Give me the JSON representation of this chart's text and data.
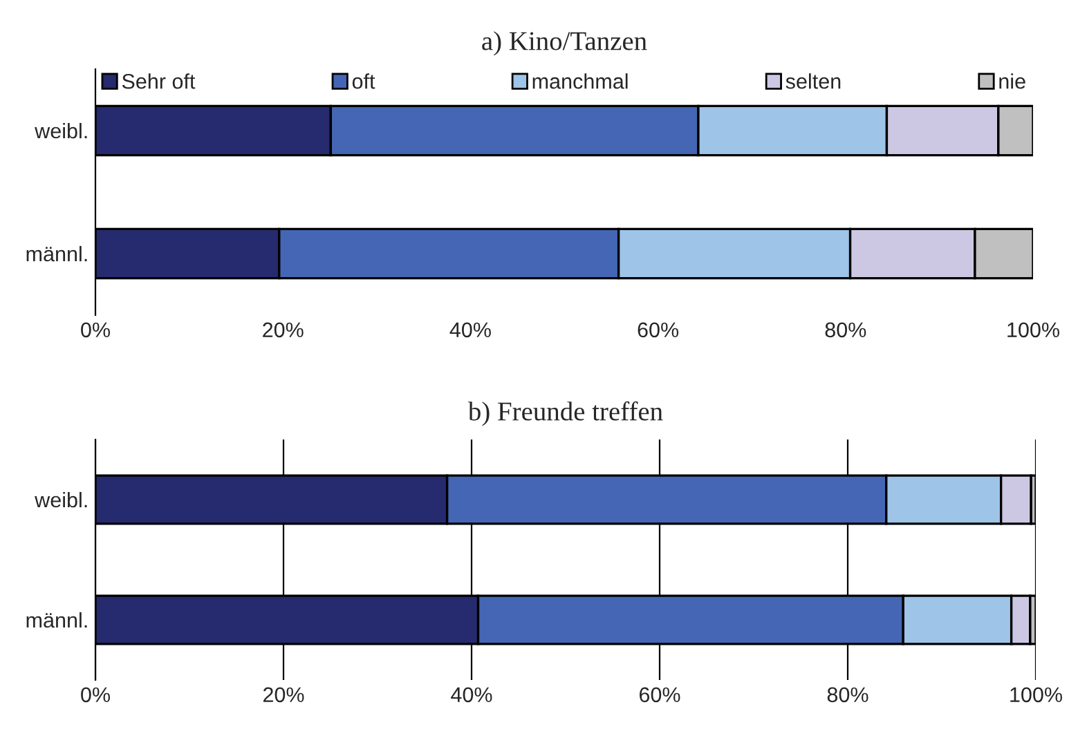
{
  "chart_data": [
    {
      "type": "bar",
      "orientation": "horizontal",
      "stacked": true,
      "title": "a) Kino/Tanzen",
      "categories": [
        "weibl.",
        "männl."
      ],
      "series": [
        {
          "name": "Sehr oft",
          "color": "#262a6e",
          "values": [
            25.1,
            19.6
          ]
        },
        {
          "name": "oft",
          "color": "#4466b4",
          "values": [
            39.2,
            36.2
          ]
        },
        {
          "name": "manchmal",
          "color": "#9ec4e8",
          "values": [
            20.1,
            24.7
          ]
        },
        {
          "name": "selten",
          "color": "#ccc8e4",
          "values": [
            11.9,
            13.3
          ]
        },
        {
          "name": "nie",
          "color": "#c0c0c0",
          "values": [
            3.7,
            6.2
          ]
        }
      ],
      "xlim": [
        0,
        100
      ],
      "xticks": [
        {
          "value": 0,
          "label": "0%"
        },
        {
          "value": 20,
          "label": "20%"
        },
        {
          "value": 40,
          "label": "40%"
        },
        {
          "value": 60,
          "label": "60%"
        },
        {
          "value": 80,
          "label": "80%"
        },
        {
          "value": 100,
          "label": "100%"
        }
      ],
      "grid": false,
      "legend": "top"
    },
    {
      "type": "bar",
      "orientation": "horizontal",
      "stacked": true,
      "title": "b) Freunde treffen",
      "categories": [
        "weibl.",
        "männl."
      ],
      "series": [
        {
          "color": "#262a6e",
          "values": [
            37.4,
            40.7
          ]
        },
        {
          "color": "#4466b4",
          "values": [
            46.7,
            45.2
          ]
        },
        {
          "color": "#9ec4e8",
          "values": [
            12.2,
            11.5
          ]
        },
        {
          "color": "#ccc8e4",
          "values": [
            3.2,
            2.0
          ]
        },
        {
          "color": "#c0c0c0",
          "values": [
            0.5,
            0.6
          ]
        }
      ],
      "xlim": [
        0,
        100
      ],
      "xticks": [
        {
          "value": 0,
          "label": "0%"
        },
        {
          "value": 20,
          "label": "20%"
        },
        {
          "value": 40,
          "label": "40%"
        },
        {
          "value": 60,
          "label": "60%"
        },
        {
          "value": 80,
          "label": "80%"
        },
        {
          "value": 100,
          "label": "100%"
        }
      ],
      "grid": "x",
      "legend": false
    }
  ]
}
